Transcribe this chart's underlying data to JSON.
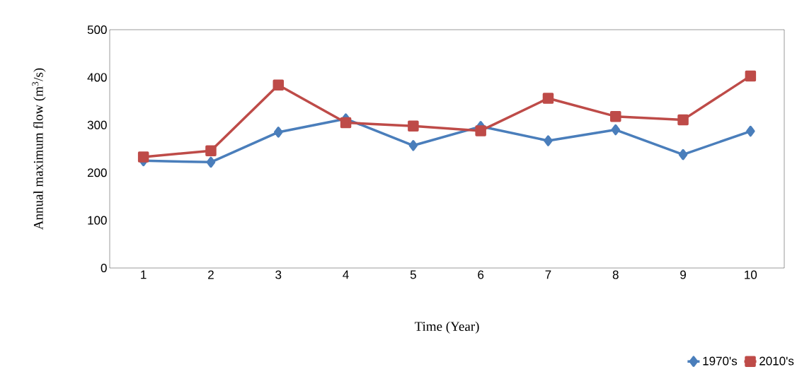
{
  "chart_data": {
    "type": "line",
    "xlabel": "Time (Year)",
    "ylabel": "Annual maximum flow (m$^{3}$/s)",
    "categories": [
      "1",
      "2",
      "3",
      "4",
      "5",
      "6",
      "7",
      "8",
      "9",
      "10"
    ],
    "series": [
      {
        "name": "1970's",
        "color": "#4a7ebb",
        "marker": "diamond",
        "values": [
          225,
          222,
          285,
          313,
          257,
          297,
          267,
          290,
          238,
          287
        ]
      },
      {
        "name": "2010's",
        "color": "#be4b48",
        "marker": "square",
        "values": [
          233,
          246,
          384,
          305,
          298,
          288,
          356,
          318,
          311,
          403
        ]
      }
    ],
    "ylim": [
      0,
      500
    ],
    "yticks": [
      0,
      100,
      200,
      300,
      400,
      500
    ],
    "grid": false,
    "legend": "bottom right",
    "line_style": "solid"
  }
}
